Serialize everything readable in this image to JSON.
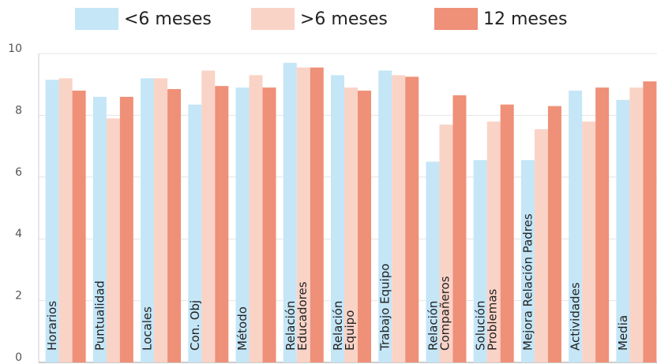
{
  "chart_data": {
    "type": "bar",
    "categories": [
      "Horarios",
      "Puntualidad",
      "Locales",
      "Con. Obj",
      "Método",
      "Relación\nEducadores",
      "Relación\nEquipo",
      "Trabajo Equipo",
      "Relación\nCompañeros",
      "Solución\nProblemas",
      "Mejora Relación Padres",
      "Actividades",
      "Media"
    ],
    "series": [
      {
        "name": "<6 meses",
        "color": "#c4e6f7",
        "values": [
          9.15,
          8.6,
          9.2,
          8.35,
          8.9,
          9.7,
          9.3,
          9.45,
          6.5,
          6.55,
          6.55,
          8.8,
          8.5
        ]
      },
      {
        "name": ">6 meses",
        "color": "#fad3c7",
        "values": [
          9.2,
          7.9,
          9.2,
          9.45,
          9.3,
          9.55,
          8.9,
          9.3,
          7.7,
          7.8,
          7.55,
          7.8,
          8.9
        ]
      },
      {
        "name": "12 meses",
        "color": "#ef9079",
        "values": [
          8.8,
          8.6,
          8.85,
          8.95,
          8.9,
          9.55,
          8.8,
          9.25,
          8.65,
          8.35,
          8.3,
          8.9,
          9.1
        ]
      }
    ],
    "ylim": [
      0,
      10
    ],
    "yticks": [
      0,
      2,
      4,
      6,
      8,
      10
    ],
    "grid": true,
    "legend": "top"
  }
}
